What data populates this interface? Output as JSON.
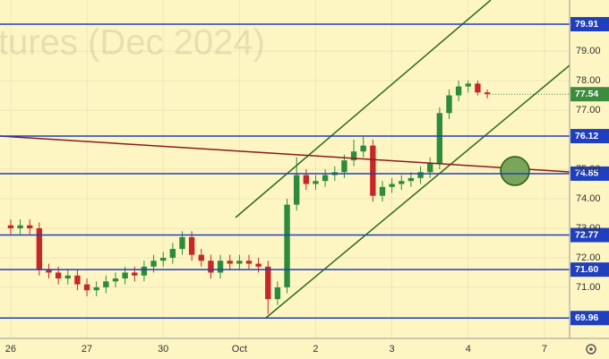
{
  "chart_data": {
    "type": "candlestick",
    "watermark": "tures (Dec 2024)",
    "x": [
      0,
      0.125,
      0.25,
      0.375,
      0.5,
      0.625,
      0.75,
      0.875,
      1,
      1.125,
      1.25,
      1.375,
      1.5,
      1.625,
      1.75,
      1.875,
      2,
      2.125,
      2.25,
      2.375,
      2.5,
      2.625,
      2.75,
      2.875,
      3,
      3.125,
      3.25,
      3.375,
      3.5,
      3.625,
      3.75,
      3.875,
      4,
      4.125,
      4.25,
      4.375,
      4.5,
      4.625,
      4.75,
      4.875,
      5,
      5.125,
      5.25,
      5.375,
      5.5,
      5.625,
      5.75,
      5.875,
      6,
      6.125,
      6.25
    ],
    "open": [
      73.1,
      73.0,
      73.1,
      73.0,
      71.6,
      71.5,
      71.3,
      71.4,
      71.1,
      70.9,
      71.0,
      71.2,
      71.3,
      71.5,
      71.4,
      71.7,
      71.9,
      72.0,
      72.3,
      72.7,
      72.1,
      71.9,
      71.5,
      71.9,
      71.8,
      71.9,
      71.8,
      71.7,
      70.6,
      71.0,
      73.8,
      74.8,
      74.5,
      74.6,
      74.8,
      74.9,
      75.3,
      75.6,
      75.8,
      74.1,
      74.4,
      74.5,
      74.6,
      74.7,
      74.9,
      75.2,
      76.9,
      77.5,
      77.8,
      77.9,
      77.6
    ],
    "high": [
      73.3,
      73.3,
      73.3,
      73.2,
      71.8,
      71.7,
      71.6,
      71.6,
      71.3,
      71.2,
      71.4,
      71.5,
      71.7,
      71.7,
      71.9,
      72.1,
      72.2,
      72.5,
      72.9,
      72.9,
      72.3,
      72.1,
      72.1,
      72.1,
      72.1,
      72.1,
      72.0,
      71.9,
      71.2,
      74.0,
      75.4,
      75.0,
      74.8,
      75.0,
      75.1,
      75.5,
      76.0,
      76.1,
      76.0,
      74.6,
      74.7,
      74.8,
      74.9,
      75.1,
      75.4,
      77.1,
      77.7,
      78.0,
      78.0,
      78.0,
      77.7
    ],
    "low": [
      72.8,
      72.8,
      72.8,
      71.4,
      71.3,
      71.1,
      71.1,
      70.9,
      70.7,
      70.7,
      70.8,
      71.0,
      71.1,
      71.2,
      71.2,
      71.5,
      71.7,
      71.8,
      72.1,
      71.9,
      71.7,
      71.3,
      71.3,
      71.6,
      71.6,
      71.6,
      71.5,
      70.1,
      70.4,
      70.8,
      73.6,
      74.3,
      74.3,
      74.4,
      74.6,
      74.7,
      75.1,
      75.4,
      73.9,
      73.9,
      74.2,
      74.3,
      74.4,
      74.5,
      74.7,
      75.0,
      76.7,
      77.3,
      77.6,
      77.5,
      77.4
    ],
    "close": [
      73.0,
      73.1,
      73.0,
      71.6,
      71.5,
      71.3,
      71.4,
      71.1,
      70.9,
      71.0,
      71.2,
      71.3,
      71.5,
      71.4,
      71.7,
      71.9,
      72.0,
      72.3,
      72.7,
      72.1,
      71.9,
      71.5,
      71.9,
      71.8,
      71.9,
      71.8,
      71.7,
      70.6,
      71.0,
      73.8,
      74.8,
      74.5,
      74.6,
      74.8,
      74.9,
      75.3,
      75.6,
      75.8,
      74.1,
      74.4,
      74.5,
      74.6,
      74.7,
      74.9,
      75.2,
      76.9,
      77.5,
      77.8,
      77.9,
      77.6,
      77.54
    ],
    "up_color": "#2e8b3e",
    "down_color": "#c62828",
    "xlim": [
      -0.14,
      7.33
    ],
    "xticks": [
      {
        "value": 0,
        "label": "26"
      },
      {
        "value": 1,
        "label": "27"
      },
      {
        "value": 2,
        "label": "30"
      },
      {
        "value": 3,
        "label": "Oct"
      },
      {
        "value": 4,
        "label": "2"
      },
      {
        "value": 5,
        "label": "3"
      },
      {
        "value": 6,
        "label": "4"
      },
      {
        "value": 7,
        "label": "7"
      }
    ],
    "ylim": [
      69.27,
      80.73
    ],
    "yticks": [
      {
        "value": 71,
        "label": "71.00"
      },
      {
        "value": 72,
        "label": "72.00"
      },
      {
        "value": 73,
        "label": "73.00"
      },
      {
        "value": 74,
        "label": "74.00"
      },
      {
        "value": 75,
        "label": "75.00"
      },
      {
        "value": 77,
        "label": "77.00"
      },
      {
        "value": 78,
        "label": "78.00"
      },
      {
        "value": 79,
        "label": "79.00"
      }
    ],
    "grid": true,
    "levels": [
      79.91,
      76.12,
      74.85,
      72.77,
      {
        "value": 71.6,
        "label": "71.60"
      },
      69.96
    ],
    "level_color": "#1f3fbf",
    "last_price": 77.54,
    "last_color": "#3d8b3d"
  }
}
